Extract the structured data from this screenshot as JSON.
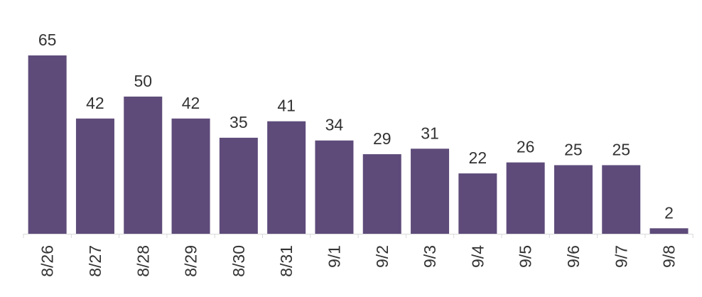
{
  "chart_data": {
    "type": "bar",
    "title": "",
    "xlabel": "",
    "ylabel": "",
    "categories": [
      "8/26",
      "8/27",
      "8/28",
      "8/29",
      "8/30",
      "8/31",
      "9/1",
      "9/2",
      "9/3",
      "9/4",
      "9/5",
      "9/6",
      "9/7",
      "9/8"
    ],
    "values": [
      65,
      42,
      50,
      42,
      35,
      41,
      34,
      29,
      31,
      22,
      26,
      25,
      25,
      2
    ],
    "ylim": [
      0,
      65
    ],
    "grid": false,
    "legend": "none",
    "bar_color": "#5e4b7a",
    "axis_color": "#d9d9d9",
    "text_color": "#333333"
  }
}
